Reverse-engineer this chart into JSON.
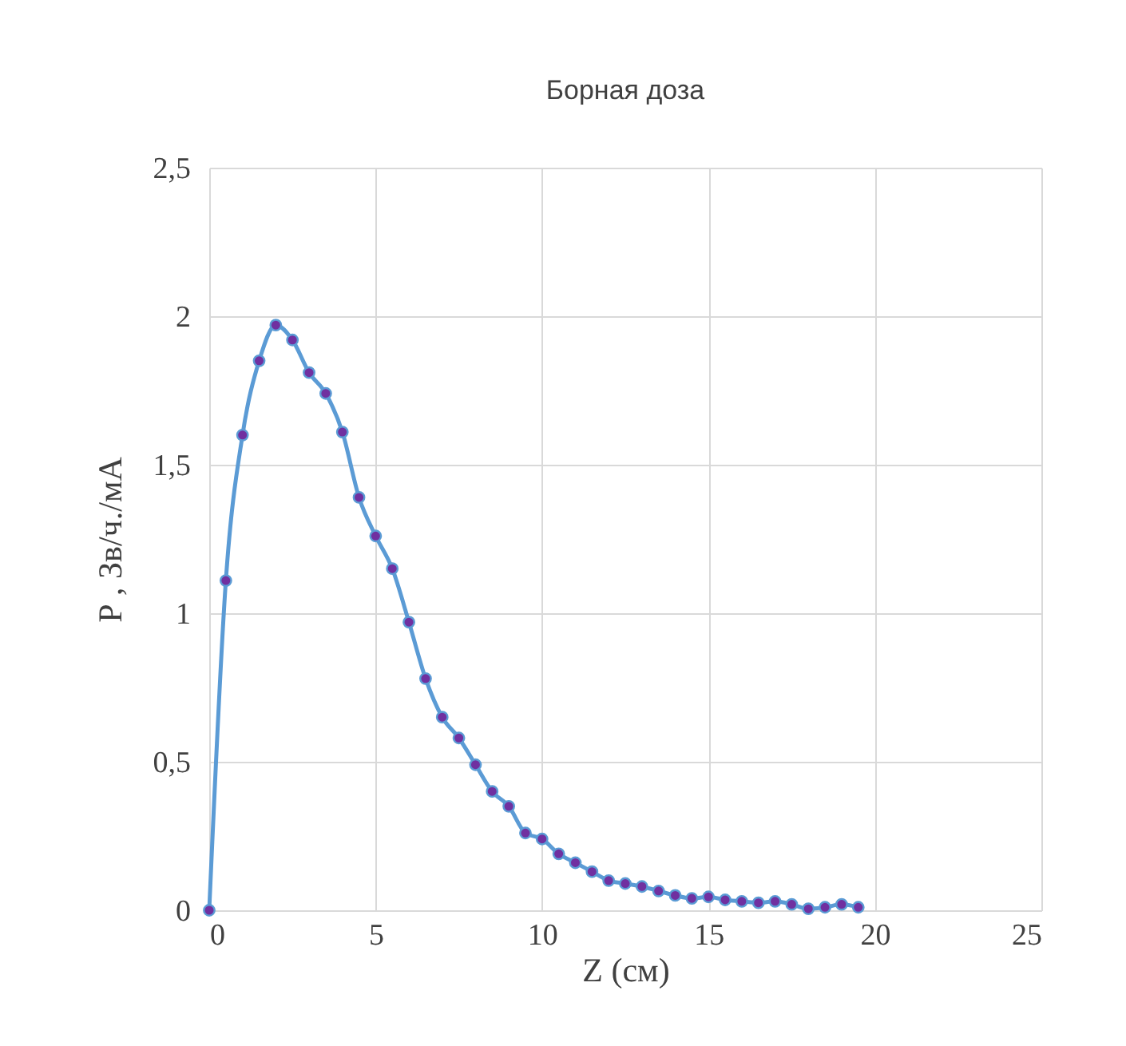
{
  "chart_data": {
    "type": "line",
    "title": "Борная доза",
    "xlabel": "Z (см)",
    "ylabel": "Р , Зв/ч./мА",
    "x": [
      0,
      0.5,
      1,
      1.5,
      2,
      2.5,
      3,
      3.5,
      4,
      4.5,
      5,
      5.5,
      6,
      6.5,
      7,
      7.5,
      8,
      8.5,
      9,
      9.5,
      10,
      10.5,
      11,
      11.5,
      12,
      12.5,
      13,
      13.5,
      14,
      14.5,
      15,
      15.5,
      16,
      16.5,
      17,
      17.5,
      18,
      18.5,
      19,
      19.5
    ],
    "series": [
      {
        "color": "#5b9bd5",
        "values": [
          0,
          1.11,
          1.6,
          1.85,
          1.97,
          1.92,
          1.81,
          1.74,
          1.61,
          1.39,
          1.26,
          1.15,
          0.97,
          0.78,
          0.65,
          0.58,
          0.49,
          0.4,
          0.35,
          0.26,
          0.24,
          0.19,
          0.16,
          0.13,
          0.1,
          0.09,
          0.08,
          0.065,
          0.05,
          0.04,
          0.045,
          0.035,
          0.03,
          0.025,
          0.03,
          0.02,
          0.005,
          0.01,
          0.02,
          0.01
        ]
      }
    ],
    "xlim": [
      0,
      25
    ],
    "xticks": [
      0,
      5,
      10,
      15,
      20,
      25
    ],
    "ylim": [
      0,
      2.5
    ],
    "yticks": [
      0,
      {
        "value": 0.5,
        "label": "0,5"
      },
      1,
      {
        "value": 1.5,
        "label": "1,5"
      },
      2,
      {
        "value": 2.5,
        "label": "2,5"
      }
    ],
    "grid": true,
    "marker": "circle",
    "legend": false
  }
}
